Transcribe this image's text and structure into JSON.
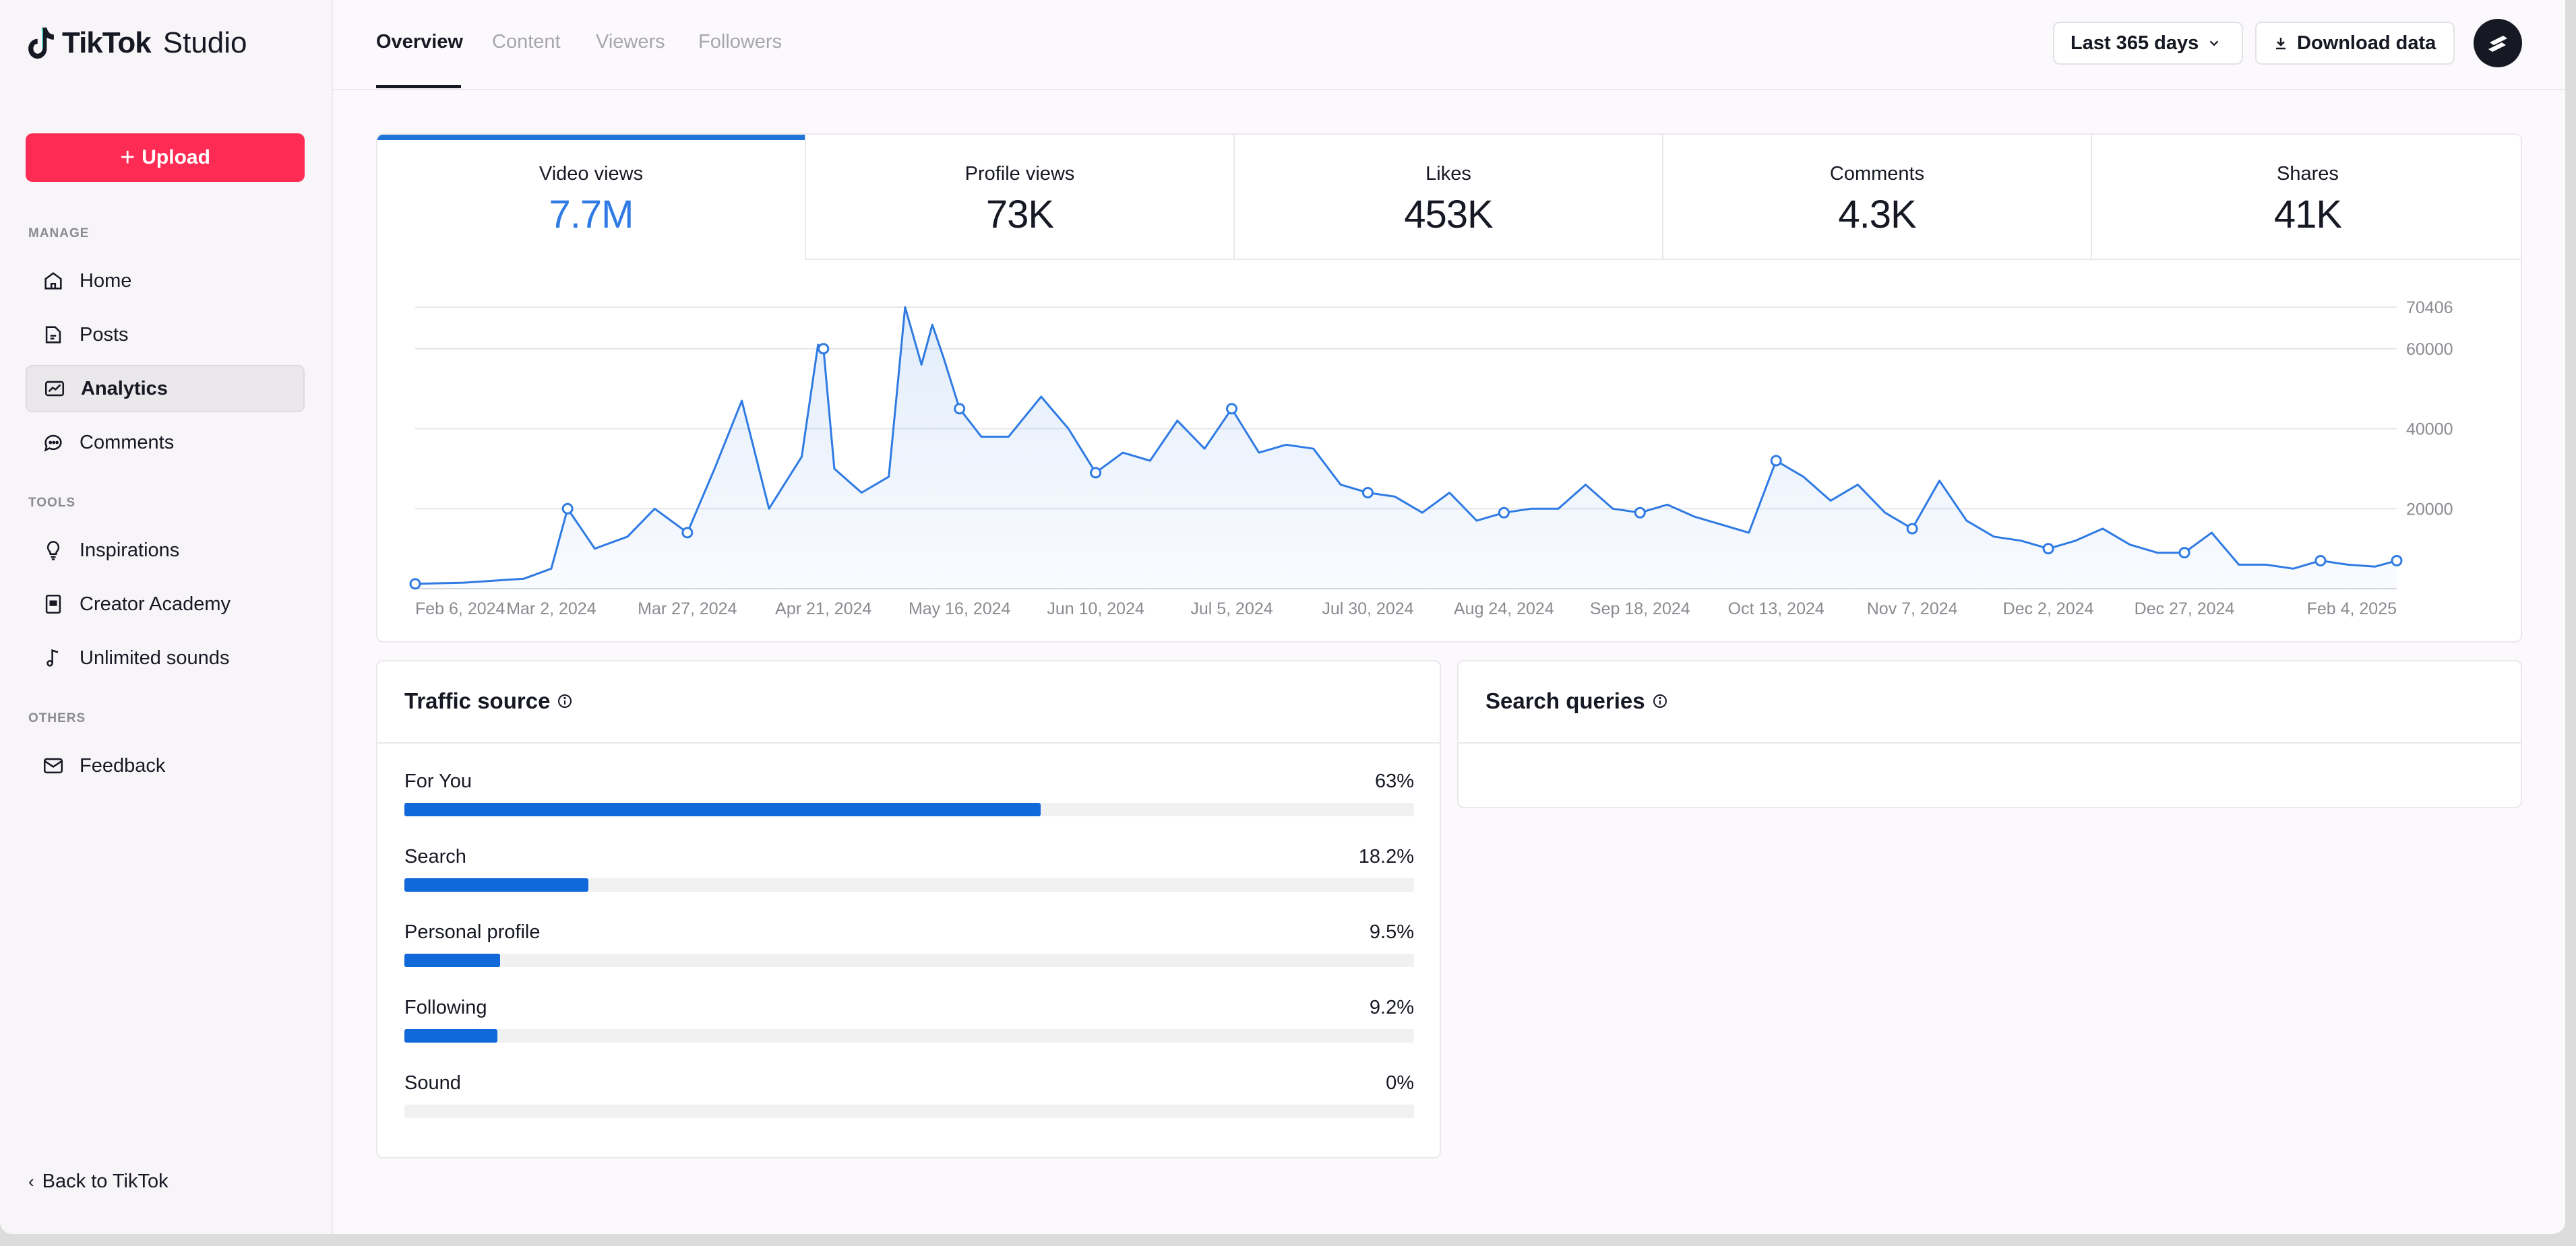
{
  "app": {
    "brand": "TikTok",
    "product": "Studio"
  },
  "sidebar": {
    "upload_label": "Upload",
    "sections": {
      "manage": "MANAGE",
      "tools": "TOOLS",
      "others": "OTHERS"
    },
    "items": [
      {
        "label": "Home",
        "icon": "home-icon"
      },
      {
        "label": "Posts",
        "icon": "posts-icon"
      },
      {
        "label": "Analytics",
        "icon": "analytics-icon",
        "active": true
      },
      {
        "label": "Comments",
        "icon": "comments-icon"
      },
      {
        "label": "Inspirations",
        "icon": "lightbulb-icon"
      },
      {
        "label": "Creator Academy",
        "icon": "academy-icon"
      },
      {
        "label": "Unlimited sounds",
        "icon": "music-note-icon"
      },
      {
        "label": "Feedback",
        "icon": "mail-icon"
      }
    ],
    "back_label": "Back to TikTok"
  },
  "topbar": {
    "tabs": [
      "Overview",
      "Content",
      "Viewers",
      "Followers"
    ],
    "active_tab": "Overview",
    "range_label": "Last 365 days",
    "download_label": "Download data"
  },
  "metrics": [
    {
      "label": "Video views",
      "value": "7.7M",
      "active": true
    },
    {
      "label": "Profile views",
      "value": "73K"
    },
    {
      "label": "Likes",
      "value": "453K"
    },
    {
      "label": "Comments",
      "value": "4.3K"
    },
    {
      "label": "Shares",
      "value": "41K"
    }
  ],
  "chart_data": {
    "type": "area",
    "title": "",
    "series_name": "Video views",
    "ylim": [
      0,
      70406
    ],
    "y_ticks": [
      20000,
      40000,
      60000,
      70406
    ],
    "x_tick_labels": [
      "Feb 6, 2024",
      "Mar 2, 2024",
      "Mar 27, 2024",
      "Apr 21, 2024",
      "May 16, 2024",
      "Jun 10, 2024",
      "Jul 5, 2024",
      "Jul 30, 2024",
      "Aug 24, 2024",
      "Sep 18, 2024",
      "Oct 13, 2024",
      "Nov 7, 2024",
      "Dec 2, 2024",
      "Dec 27, 2024",
      "Feb 4, 2025"
    ],
    "x": [
      "Feb 6, 2024",
      "Feb 15, 2024",
      "Feb 26, 2024",
      "Mar 2, 2024",
      "Mar 5, 2024",
      "Mar 10, 2024",
      "Mar 16, 2024",
      "Mar 21, 2024",
      "Mar 27, 2024",
      "Apr 1, 2024",
      "Apr 6, 2024",
      "Apr 11, 2024",
      "Apr 17, 2024",
      "Apr 20, 2024",
      "Apr 21, 2024",
      "Apr 23, 2024",
      "Apr 28, 2024",
      "May 3, 2024",
      "May 6, 2024",
      "May 9, 2024",
      "May 11, 2024",
      "May 13, 2024",
      "May 16, 2024",
      "May 20, 2024",
      "May 25, 2024",
      "May 31, 2024",
      "Jun 5, 2024",
      "Jun 10, 2024",
      "Jun 15, 2024",
      "Jun 20, 2024",
      "Jun 25, 2024",
      "Jun 30, 2024",
      "Jul 5, 2024",
      "Jul 10, 2024",
      "Jul 15, 2024",
      "Jul 20, 2024",
      "Jul 25, 2024",
      "Jul 30, 2024",
      "Aug 4, 2024",
      "Aug 9, 2024",
      "Aug 14, 2024",
      "Aug 19, 2024",
      "Aug 24, 2024",
      "Aug 29, 2024",
      "Sep 3, 2024",
      "Sep 8, 2024",
      "Sep 13, 2024",
      "Sep 18, 2024",
      "Sep 23, 2024",
      "Sep 28, 2024",
      "Oct 3, 2024",
      "Oct 8, 2024",
      "Oct 13, 2024",
      "Oct 18, 2024",
      "Oct 23, 2024",
      "Oct 28, 2024",
      "Nov 2, 2024",
      "Nov 7, 2024",
      "Nov 12, 2024",
      "Nov 17, 2024",
      "Nov 22, 2024",
      "Nov 27, 2024",
      "Dec 2, 2024",
      "Dec 7, 2024",
      "Dec 12, 2024",
      "Dec 17, 2024",
      "Dec 22, 2024",
      "Dec 27, 2024",
      "Jan 1, 2025",
      "Jan 6, 2025",
      "Jan 11, 2025",
      "Jan 16, 2025",
      "Jan 21, 2025",
      "Jan 26, 2025",
      "Jan 31, 2025",
      "Feb 4, 2025"
    ],
    "y": [
      1200,
      1500,
      2500,
      5000,
      20000,
      10000,
      13000,
      20000,
      14000,
      30000,
      47000,
      20000,
      33000,
      61000,
      60000,
      30000,
      24000,
      28000,
      70406,
      56000,
      66000,
      58000,
      45000,
      38000,
      38000,
      48000,
      40000,
      29000,
      34000,
      32000,
      42000,
      35000,
      45000,
      34000,
      36000,
      35000,
      26000,
      24000,
      23000,
      19000,
      24000,
      17000,
      19000,
      20000,
      20000,
      26000,
      20000,
      19000,
      21000,
      18000,
      16000,
      14000,
      32000,
      28000,
      22000,
      26000,
      19000,
      15000,
      27000,
      17000,
      13000,
      12000,
      10000,
      12000,
      15000,
      11000,
      9000,
      9000,
      14000,
      6000,
      6000,
      5000,
      7000,
      6000,
      5500,
      7000
    ],
    "markers_at": [
      "Feb 6, 2024",
      "Mar 5, 2024",
      "Mar 27, 2024",
      "Apr 21, 2024",
      "May 16, 2024",
      "Jun 10, 2024",
      "Jul 5, 2024",
      "Jul 30, 2024",
      "Aug 24, 2024",
      "Sep 18, 2024",
      "Oct 13, 2024",
      "Nov 7, 2024",
      "Dec 2, 2024",
      "Dec 27, 2024",
      "Jan 21, 2025",
      "Feb 4, 2025"
    ],
    "color": "#2f7be3",
    "grid": true
  },
  "traffic": {
    "title": "Traffic source",
    "rows": [
      {
        "name": "For You",
        "pct_label": "63%",
        "fraction": 0.63
      },
      {
        "name": "Search",
        "pct_label": "18.2%",
        "fraction": 0.182
      },
      {
        "name": "Personal profile",
        "pct_label": "9.5%",
        "fraction": 0.095
      },
      {
        "name": "Following",
        "pct_label": "9.2%",
        "fraction": 0.092
      },
      {
        "name": "Sound",
        "pct_label": "0%",
        "fraction": 0
      }
    ]
  },
  "search_queries": {
    "title": "Search queries"
  },
  "colors": {
    "accent": "#fe2c55",
    "chart_blue": "#2f7be3",
    "bar_blue": "#1068d9"
  }
}
